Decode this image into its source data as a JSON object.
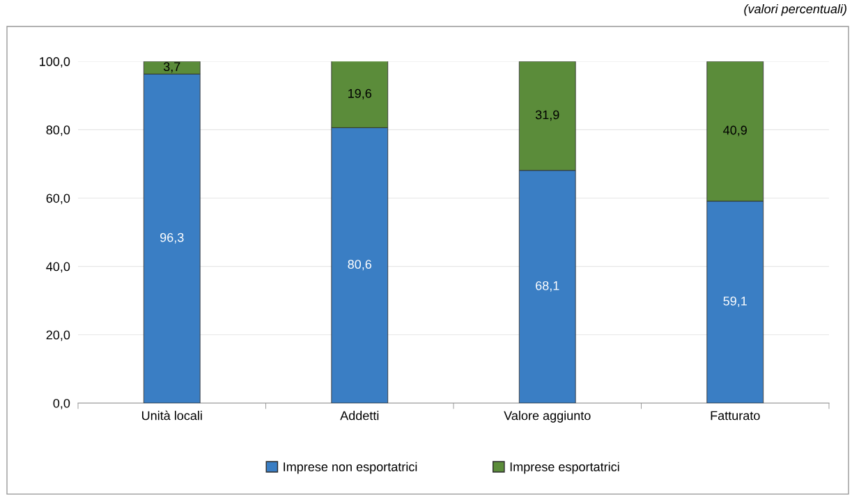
{
  "chart_data": {
    "type": "bar",
    "stacked": true,
    "categories": [
      "Unità locali",
      "Addetti",
      "Valore aggiunto",
      "Fatturato"
    ],
    "series": [
      {
        "name": "Imprese non esportatrici",
        "color": "#3a7ec4",
        "values": [
          96.3,
          80.6,
          68.1,
          59.1
        ],
        "value_labels": [
          "96,3",
          "80,6",
          "68,1",
          "59,1"
        ]
      },
      {
        "name": "Imprese esportatrici",
        "color": "#5b8c3a",
        "values": [
          3.7,
          19.6,
          31.9,
          40.9
        ],
        "value_labels": [
          "3,7",
          "19,6",
          "31,9",
          "40,9"
        ]
      }
    ],
    "ylim": [
      0,
      100
    ],
    "yticks": [
      {
        "value": 0,
        "label": "0,0"
      },
      {
        "value": 20,
        "label": "20,0"
      },
      {
        "value": 40,
        "label": "40,0"
      },
      {
        "value": 60,
        "label": "60,0"
      },
      {
        "value": 80,
        "label": "80,0"
      },
      {
        "value": 100,
        "label": "100,0"
      }
    ],
    "grid": "y",
    "legend": "bottom",
    "annotations": [
      "(valori percentuali)"
    ]
  }
}
